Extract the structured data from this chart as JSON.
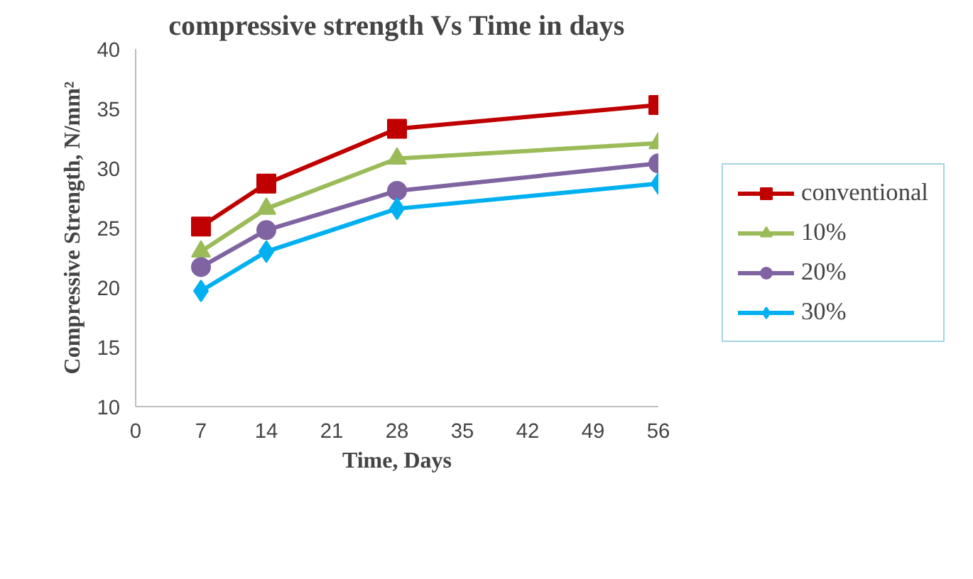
{
  "chart_data": {
    "type": "line",
    "title": "compressive strength Vs Time in days",
    "xlabel": "Time, Days",
    "ylabel": "Compressive Strength, N/mm²",
    "x": [
      7,
      14,
      28,
      56
    ],
    "xlim": [
      0,
      56
    ],
    "xticks": [
      0,
      7,
      14,
      21,
      28,
      35,
      42,
      49,
      56
    ],
    "ylim": [
      10,
      40
    ],
    "yticks": [
      10,
      15,
      20,
      25,
      30,
      35,
      40
    ],
    "grid": false,
    "legend": "right",
    "series": [
      {
        "name": "conventional",
        "color": "#c00000",
        "marker": "square",
        "values": [
          25.1,
          28.7,
          33.3,
          35.3
        ]
      },
      {
        "name": "10%",
        "color": "#9bbb59",
        "marker": "triangle",
        "values": [
          23.0,
          26.6,
          30.8,
          32.1
        ]
      },
      {
        "name": "20%",
        "color": "#8064a2",
        "marker": "circle",
        "values": [
          21.7,
          24.8,
          28.1,
          30.4
        ]
      },
      {
        "name": "30%",
        "color": "#00b0f0",
        "marker": "diamond",
        "values": [
          19.7,
          23.0,
          26.6,
          28.7
        ]
      }
    ]
  }
}
